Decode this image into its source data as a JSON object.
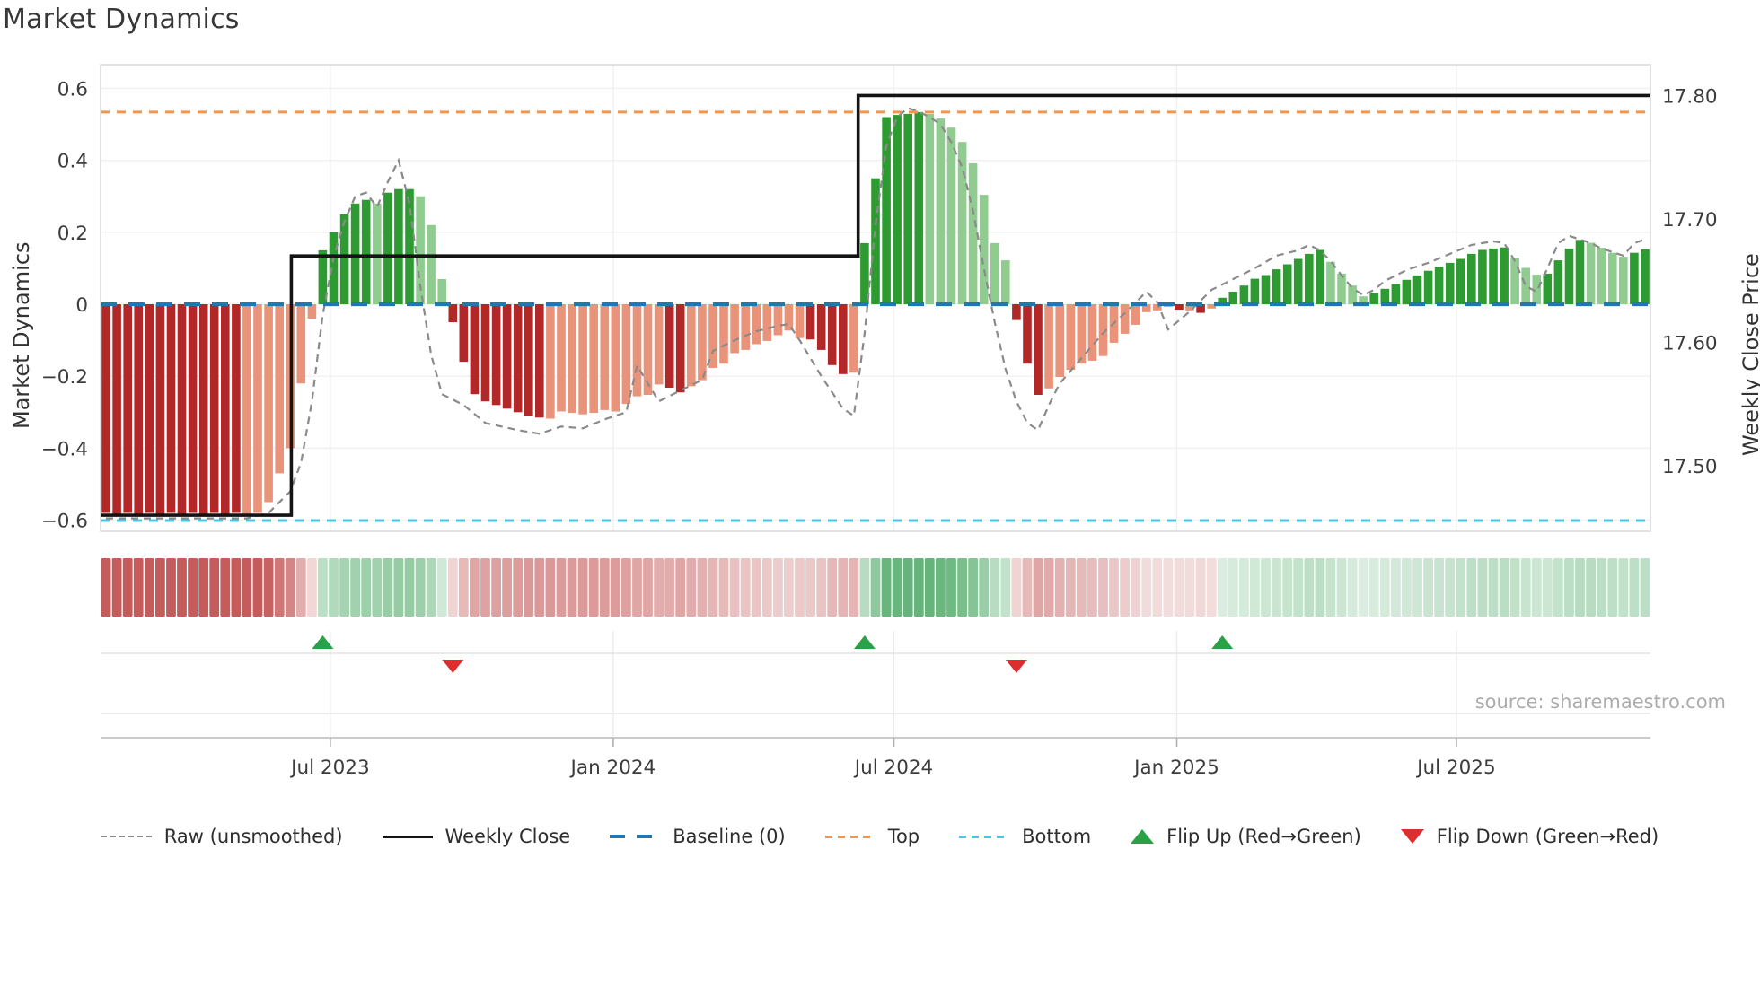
{
  "title": "Market Dynamics",
  "source": "source: sharemaestro.com",
  "axes": {
    "left_label": "Market Dynamics",
    "right_label": "Weekly Close Price",
    "left_ticks": [
      "0.6",
      "0.4",
      "0.2",
      "0",
      "−0.2",
      "−0.4",
      "−0.6"
    ],
    "left_tick_values": [
      0.6,
      0.4,
      0.2,
      0,
      -0.2,
      -0.4,
      -0.6
    ],
    "right_ticks": [
      "17.80",
      "17.70",
      "17.60",
      "17.50"
    ],
    "right_tick_values": [
      17.8,
      17.7,
      17.6,
      17.5
    ],
    "x_ticks": [
      "Jul 2023",
      "Jan 2024",
      "Jul 2024",
      "Jan 2025",
      "Jul 2025"
    ],
    "x_tick_index": [
      20.7,
      46.8,
      72.7,
      98.8,
      124.6
    ]
  },
  "legend": [
    {
      "label": "Raw (unsmoothed)"
    },
    {
      "label": "Weekly Close"
    },
    {
      "label": "Baseline (0)"
    },
    {
      "label": "Top"
    },
    {
      "label": "Bottom"
    },
    {
      "label": "Flip Up (Red→Green)"
    },
    {
      "label": "Flip Down (Green→Red)"
    }
  ],
  "colors": {
    "bar_dark_red": "#b22727",
    "bar_light_red": "#e8937a",
    "bar_dark_green": "#2e9b32",
    "bar_light_green": "#90cb90",
    "heat_red": "180,40,40",
    "heat_green": "40,150,70",
    "baseline": "#1f77b4",
    "top_line": "#f2954e",
    "bottom_line": "#45c8e6",
    "raw_line": "#8a8a8a",
    "close_line": "#141414",
    "flip_up": "#2aa147",
    "flip_down": "#dc2e2e",
    "grid": "#f0f0f0",
    "spine": "#d9d9d9",
    "tick_text": "#3c3c3c"
  },
  "chart_data": {
    "type": "bar",
    "title": "Market Dynamics",
    "xlabel": "",
    "ylabel_left": "Market Dynamics",
    "ylabel_right": "Weekly Close Price",
    "ylim": [
      -0.631,
      0.666
    ],
    "price_ylim": [
      17.447,
      17.825
    ],
    "baseline": 0,
    "top_level": 0.534,
    "bottom_level": -0.601,
    "bars": {
      "note": "143 weekly bars, Feb 2023 - Oct 2025; colors dr=dark red, lr=light red, dg=dark green, lg=light green",
      "values": [
        -0.58,
        -0.585,
        -0.58,
        -0.585,
        -0.58,
        -0.585,
        -0.58,
        -0.585,
        -0.58,
        -0.585,
        -0.58,
        -0.585,
        -0.58,
        -0.585,
        -0.58,
        -0.55,
        -0.47,
        -0.4,
        -0.22,
        -0.04,
        0.15,
        0.2,
        0.25,
        0.28,
        0.29,
        0.28,
        0.31,
        0.32,
        0.32,
        0.3,
        0.22,
        0.07,
        -0.05,
        -0.16,
        -0.25,
        -0.27,
        -0.28,
        -0.29,
        -0.3,
        -0.31,
        -0.315,
        -0.318,
        -0.298,
        -0.302,
        -0.306,
        -0.302,
        -0.294,
        -0.298,
        -0.277,
        -0.256,
        -0.252,
        -0.223,
        -0.232,
        -0.245,
        -0.228,
        -0.211,
        -0.177,
        -0.165,
        -0.136,
        -0.127,
        -0.111,
        -0.102,
        -0.086,
        -0.073,
        -0.094,
        -0.098,
        -0.127,
        -0.169,
        -0.194,
        -0.19,
        0.17,
        0.35,
        0.52,
        0.526,
        0.529,
        0.534,
        0.529,
        0.516,
        0.491,
        0.451,
        0.392,
        0.304,
        0.17,
        0.122,
        -0.044,
        -0.165,
        -0.252,
        -0.234,
        -0.202,
        -0.182,
        -0.165,
        -0.157,
        -0.144,
        -0.107,
        -0.082,
        -0.057,
        -0.022,
        -0.017,
        -0.007,
        -0.015,
        -0.017,
        -0.024,
        -0.012,
        0.018,
        0.035,
        0.052,
        0.071,
        0.081,
        0.097,
        0.111,
        0.126,
        0.14,
        0.151,
        0.118,
        0.085,
        0.052,
        0.022,
        0.031,
        0.043,
        0.056,
        0.068,
        0.08,
        0.093,
        0.104,
        0.115,
        0.126,
        0.14,
        0.151,
        0.155,
        0.158,
        0.129,
        0.101,
        0.082,
        0.085,
        0.122,
        0.155,
        0.179,
        0.171,
        0.157,
        0.143,
        0.132,
        0.143,
        0.153
      ],
      "colors": [
        "dr",
        "dr",
        "dr",
        "dr",
        "dr",
        "dr",
        "dr",
        "dr",
        "dr",
        "dr",
        "dr",
        "dr",
        "dr",
        "lr",
        "lr",
        "lr",
        "lr",
        "lr",
        "lr",
        "lr",
        "dg",
        "dg",
        "dg",
        "dg",
        "dg",
        "lg",
        "dg",
        "dg",
        "dg",
        "lg",
        "lg",
        "lg",
        "dr",
        "dr",
        "dr",
        "dr",
        "dr",
        "dr",
        "dr",
        "dr",
        "dr",
        "lr",
        "lr",
        "lr",
        "lr",
        "lr",
        "lr",
        "lr",
        "lr",
        "lr",
        "lr",
        "lr",
        "dr",
        "dr",
        "lr",
        "lr",
        "lr",
        "lr",
        "lr",
        "lr",
        "lr",
        "lr",
        "lr",
        "lr",
        "lr",
        "dr",
        "dr",
        "dr",
        "dr",
        "lr",
        "dg",
        "dg",
        "dg",
        "dg",
        "dg",
        "dg",
        "lg",
        "lg",
        "lg",
        "lg",
        "lg",
        "lg",
        "lg",
        "lg",
        "dr",
        "dr",
        "dr",
        "lr",
        "lr",
        "lr",
        "lr",
        "lr",
        "lr",
        "lr",
        "lr",
        "lr",
        "lr",
        "lr",
        "lr",
        "dr",
        "lr",
        "dr",
        "lr",
        "dg",
        "dg",
        "dg",
        "dg",
        "dg",
        "dg",
        "dg",
        "dg",
        "dg",
        "dg",
        "lg",
        "lg",
        "lg",
        "lg",
        "dg",
        "dg",
        "dg",
        "dg",
        "dg",
        "dg",
        "dg",
        "dg",
        "dg",
        "dg",
        "dg",
        "dg",
        "dg",
        "lg",
        "lg",
        "lg",
        "dg",
        "dg",
        "dg",
        "dg",
        "lg",
        "lg",
        "lg",
        "lg",
        "dg",
        "dg"
      ]
    },
    "raw_line_breakpoints": [
      [
        0,
        -0.595
      ],
      [
        13,
        -0.595
      ],
      [
        15,
        -0.58
      ],
      [
        17,
        -0.52
      ],
      [
        18,
        -0.44
      ],
      [
        19,
        -0.27
      ],
      [
        20,
        -0.03
      ],
      [
        21,
        0.13
      ],
      [
        22,
        0.23
      ],
      [
        23,
        0.3
      ],
      [
        24,
        0.31
      ],
      [
        25,
        0.27
      ],
      [
        26,
        0.34
      ],
      [
        27,
        0.4
      ],
      [
        28,
        0.28
      ],
      [
        29,
        0.05
      ],
      [
        30,
        -0.14
      ],
      [
        31,
        -0.25
      ],
      [
        33,
        -0.28
      ],
      [
        35,
        -0.33
      ],
      [
        38,
        -0.35
      ],
      [
        40,
        -0.36
      ],
      [
        42,
        -0.34
      ],
      [
        44,
        -0.345
      ],
      [
        46,
        -0.32
      ],
      [
        48,
        -0.3
      ],
      [
        49,
        -0.17
      ],
      [
        50,
        -0.22
      ],
      [
        51,
        -0.27
      ],
      [
        53,
        -0.24
      ],
      [
        55,
        -0.21
      ],
      [
        56,
        -0.13
      ],
      [
        58,
        -0.1
      ],
      [
        60,
        -0.075
      ],
      [
        62,
        -0.06
      ],
      [
        63,
        -0.055
      ],
      [
        64,
        -0.1
      ],
      [
        66,
        -0.2
      ],
      [
        68,
        -0.29
      ],
      [
        69,
        -0.31
      ],
      [
        70,
        -0.08
      ],
      [
        71,
        0.22
      ],
      [
        72,
        0.44
      ],
      [
        73,
        0.52
      ],
      [
        74,
        0.545
      ],
      [
        75,
        0.535
      ],
      [
        76,
        0.52
      ],
      [
        77,
        0.5
      ],
      [
        78,
        0.45
      ],
      [
        79,
        0.38
      ],
      [
        80,
        0.26
      ],
      [
        81,
        0.1
      ],
      [
        82,
        -0.05
      ],
      [
        83,
        -0.18
      ],
      [
        84,
        -0.27
      ],
      [
        85,
        -0.33
      ],
      [
        86,
        -0.35
      ],
      [
        87,
        -0.28
      ],
      [
        88,
        -0.22
      ],
      [
        89,
        -0.185
      ],
      [
        90,
        -0.15
      ],
      [
        92,
        -0.08
      ],
      [
        94,
        -0.025
      ],
      [
        95,
        0.005
      ],
      [
        96,
        0.035
      ],
      [
        97,
        0.005
      ],
      [
        98,
        -0.07
      ],
      [
        99,
        -0.045
      ],
      [
        100,
        -0.02
      ],
      [
        101,
        0.01
      ],
      [
        102,
        0.04
      ],
      [
        104,
        0.07
      ],
      [
        106,
        0.1
      ],
      [
        108,
        0.135
      ],
      [
        110,
        0.15
      ],
      [
        111,
        0.165
      ],
      [
        112,
        0.15
      ],
      [
        113,
        0.12
      ],
      [
        114,
        0.08
      ],
      [
        115,
        0.045
      ],
      [
        116,
        0.025
      ],
      [
        117,
        0.04
      ],
      [
        118,
        0.065
      ],
      [
        120,
        0.095
      ],
      [
        122,
        0.115
      ],
      [
        124,
        0.14
      ],
      [
        126,
        0.165
      ],
      [
        128,
        0.175
      ],
      [
        129,
        0.17
      ],
      [
        130,
        0.12
      ],
      [
        131,
        0.05
      ],
      [
        132,
        0.035
      ],
      [
        133,
        0.1
      ],
      [
        134,
        0.17
      ],
      [
        135,
        0.19
      ],
      [
        136,
        0.18
      ],
      [
        137,
        0.17
      ],
      [
        138,
        0.155
      ],
      [
        139,
        0.145
      ],
      [
        140,
        0.135
      ],
      [
        141,
        0.17
      ],
      [
        142,
        0.18
      ]
    ],
    "weekly_close_steps": [
      {
        "i0": -0.5,
        "i1": 17.1,
        "price": 17.46
      },
      {
        "i0": 17.1,
        "i1": 69.4,
        "price": 17.67
      },
      {
        "i0": 69.4,
        "i1": 142.5,
        "price": 17.8
      }
    ],
    "markers": {
      "up_index": [
        20,
        70,
        103
      ],
      "down_index": [
        32,
        84
      ]
    }
  }
}
